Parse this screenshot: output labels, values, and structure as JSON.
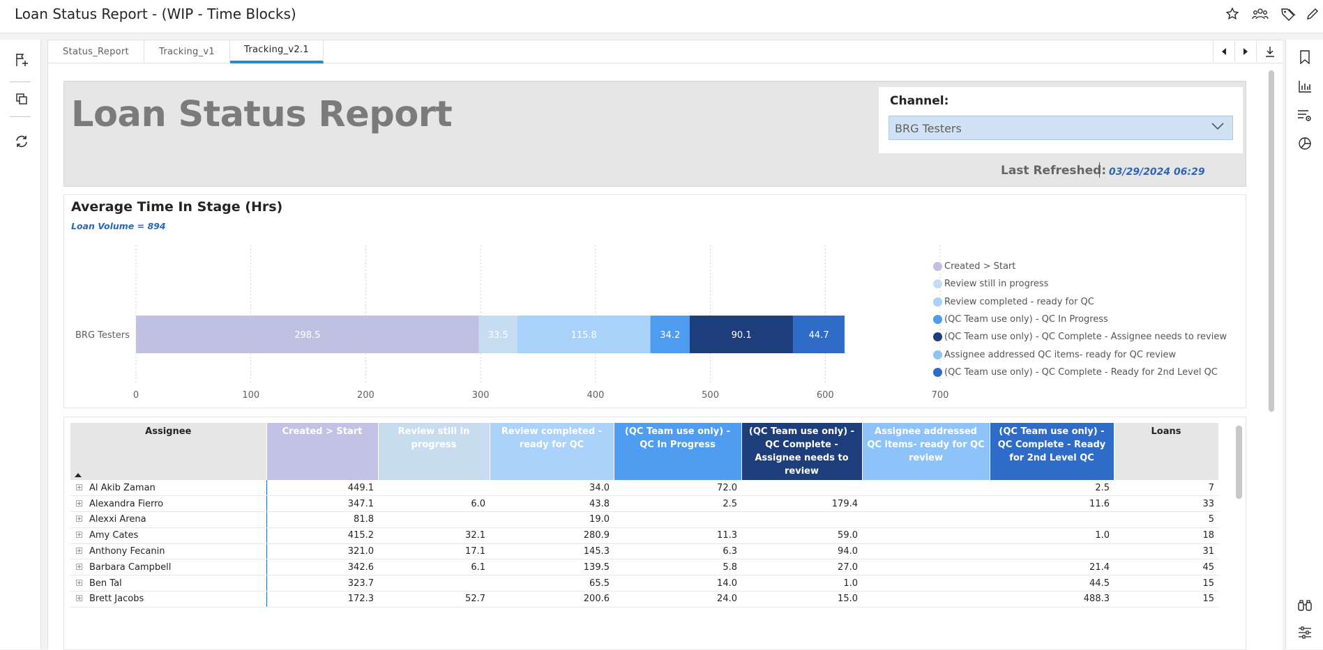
{
  "app": {
    "title": "Loan Status Report - (WIP - Time Blocks)"
  },
  "top_icons": [
    "star-icon",
    "people-icon",
    "tag-icon",
    "edit-icon"
  ],
  "left_rail": [
    "new-visual-icon",
    "duplicate-icon",
    "refresh-icon"
  ],
  "right_rail": [
    "bookmark-icon",
    "bar-chart-icon",
    "filter-settings-icon",
    "pie-chart-icon",
    "binoculars-icon",
    "sliders-icon"
  ],
  "tabs": [
    {
      "label": "Status_Report"
    },
    {
      "label": "Tracking_v1"
    },
    {
      "label": "Tracking_v2.1"
    }
  ],
  "header": {
    "title": "Loan Status Report",
    "channel_label": "Channel:",
    "channel_value": "BRG Testers",
    "last_refreshed_label": "Last Refreshed:",
    "last_refreshed_value": "03/29/2024 06:29"
  },
  "chart": {
    "title": "Average Time In Stage (Hrs)",
    "subtitle": "Loan Volume = 894"
  },
  "chart_data": {
    "type": "bar",
    "orientation": "horizontal-stacked",
    "categories": [
      "BRG Testers"
    ],
    "series": [
      {
        "name": "Created > Start",
        "values": [
          298.5
        ],
        "color": "#bfc0e2"
      },
      {
        "name": "Review still in progress",
        "values": [
          33.5
        ],
        "color": "#c6dcf0"
      },
      {
        "name": "Review completed - ready for QC",
        "values": [
          115.8
        ],
        "color": "#a9d2fb"
      },
      {
        "name": "(QC Team use only) - QC In Progress",
        "values": [
          34.2
        ],
        "color": "#4d9cf0"
      },
      {
        "name": "(QC Team use only) - QC Complete - Assignee needs to review",
        "values": [
          90.1
        ],
        "color": "#1e3d7b"
      },
      {
        "name": "Assignee addressed QC items- ready for QC review",
        "values": [
          44.7
        ],
        "color": "#8ec3fa"
      },
      {
        "name": "(QC Team use only) - QC Complete - Ready for 2nd Level QC",
        "values": [
          44.7
        ],
        "color": "#2f6cc8"
      }
    ],
    "segments_shown": [
      {
        "label": "298.5",
        "value": 298.5,
        "color": "#bfc0e2"
      },
      {
        "label": "33.5",
        "value": 33.5,
        "color": "#c6dcf0"
      },
      {
        "label": "115.8",
        "value": 115.8,
        "color": "#a9d2fb"
      },
      {
        "label": "34.2",
        "value": 34.2,
        "color": "#4d9cf0"
      },
      {
        "label": "90.1",
        "value": 90.1,
        "color": "#1e3d7b"
      },
      {
        "label": "44.7",
        "value": 44.7,
        "color": "#2f6cc8"
      }
    ],
    "x_ticks": [
      "0",
      "100",
      "200",
      "300",
      "400",
      "500",
      "600",
      "700"
    ],
    "xlim": [
      0,
      700
    ],
    "legend_position": "right",
    "grid": true
  },
  "table": {
    "columns": [
      {
        "label": "Assignee",
        "bg": "#e6e6e6",
        "color": "#252423"
      },
      {
        "label": "Created > Start",
        "bg": "#c2c3e4",
        "color": "#ffffff"
      },
      {
        "label": "Review still in progress",
        "bg": "#c8dcef",
        "color": "#ffffff"
      },
      {
        "label": "Review completed - ready for QC",
        "bg": "#aad2fb",
        "color": "#ffffff"
      },
      {
        "label": "(QC Team use only) - QC In Progress",
        "bg": "#4f9df0",
        "color": "#ffffff"
      },
      {
        "label": "(QC Team use only) - QC Complete - Assignee needs to review",
        "bg": "#1e3d7b",
        "color": "#ffffff"
      },
      {
        "label": "Assignee addressed QC items- ready for QC review",
        "bg": "#8ec3fa",
        "color": "#ffffff"
      },
      {
        "label": "(QC Team use only) - QC Complete - Ready for 2nd Level QC",
        "bg": "#2f6cc8",
        "color": "#ffffff"
      },
      {
        "label": "Loans",
        "bg": "#e6e6e6",
        "color": "#252423"
      }
    ],
    "rows": [
      [
        "Al Akib Zaman",
        "449.1",
        "",
        "34.0",
        "72.0",
        "",
        "",
        "2.5",
        "7"
      ],
      [
        "Alexandra Fierro",
        "347.1",
        "6.0",
        "43.8",
        "2.5",
        "179.4",
        "",
        "11.6",
        "33"
      ],
      [
        "Alexxi Arena",
        "81.8",
        "",
        "19.0",
        "",
        "",
        "",
        "",
        "5"
      ],
      [
        "Amy Cates",
        "415.2",
        "32.1",
        "280.9",
        "11.3",
        "59.0",
        "",
        "1.0",
        "18"
      ],
      [
        "Anthony Fecanin",
        "321.0",
        "17.1",
        "145.3",
        "6.3",
        "94.0",
        "",
        "",
        "31"
      ],
      [
        "Barbara Campbell",
        "342.6",
        "6.1",
        "139.5",
        "5.8",
        "27.0",
        "",
        "21.4",
        "45"
      ],
      [
        "Ben Tal",
        "323.7",
        "",
        "65.5",
        "14.0",
        "1.0",
        "",
        "44.5",
        "15"
      ],
      [
        "Brett Jacobs",
        "172.3",
        "52.7",
        "200.6",
        "24.0",
        "15.0",
        "",
        "488.3",
        "15"
      ]
    ]
  }
}
